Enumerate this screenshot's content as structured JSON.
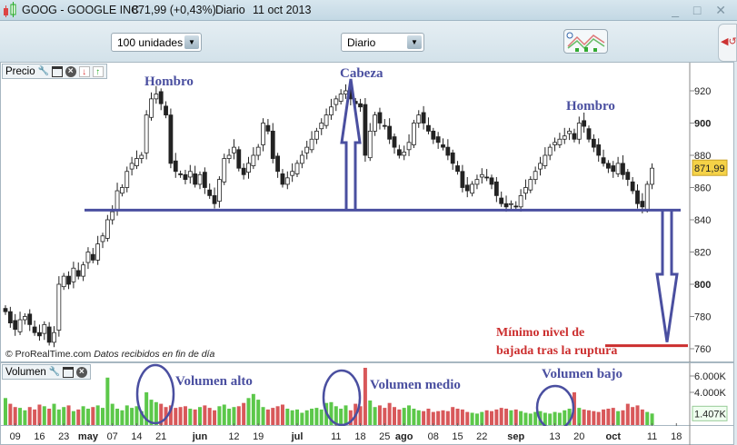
{
  "window": {
    "symbol": "GOOG - GOOGLE INC.",
    "quote": "871,99 (+0,43%)",
    "period": "Diario",
    "date": "11 oct 2013",
    "controls": "_ □ ✕"
  },
  "toolbar": {
    "units": "100 unidades",
    "timeframe": "Diario"
  },
  "price_panel": {
    "label": "Precio",
    "credit": "© ProRealTime.com",
    "credit_note": "Datos recibidos en fin de día",
    "last_price": "871,99"
  },
  "volume_panel": {
    "label": "Volumen",
    "last_volume": "1.407K"
  },
  "annotations": {
    "left_shoulder": "Hombro",
    "head": "Cabeza",
    "right_shoulder": "Hombro",
    "target_line1": "Mínimo nivel de",
    "target_line2": "bajada tras la ruptura",
    "vol_high": "Volumen alto",
    "vol_mid": "Volumen medio",
    "vol_low": "Volumen bajo",
    "neckline_price": 846,
    "target_price": 763
  },
  "colors": {
    "up_candle": "#ffffff",
    "down_candle": "#222222",
    "vol_up": "#5cc84a",
    "vol_down": "#d8585a",
    "annotation": "#4a4fa0",
    "target": "#cc2f2f"
  },
  "chart_data": {
    "type": "candlestick",
    "ylim": [
      755,
      935
    ],
    "yticks": [
      920,
      900,
      880,
      860,
      840,
      820,
      800,
      780,
      760
    ],
    "vol_ticks": [
      "6.000K",
      "4.000K"
    ],
    "vol_tick_values": [
      6000,
      4000
    ],
    "xticks": [
      {
        "label": "09",
        "i": 2
      },
      {
        "label": "16",
        "i": 7
      },
      {
        "label": "23",
        "i": 12
      },
      {
        "label": "may",
        "i": 17,
        "bold": true
      },
      {
        "label": "07",
        "i": 22
      },
      {
        "label": "14",
        "i": 27
      },
      {
        "label": "21",
        "i": 32
      },
      {
        "label": "jun",
        "i": 40,
        "bold": true
      },
      {
        "label": "12",
        "i": 47
      },
      {
        "label": "19",
        "i": 52
      },
      {
        "label": "jul",
        "i": 60,
        "bold": true
      },
      {
        "label": "11",
        "i": 68
      },
      {
        "label": "18",
        "i": 73
      },
      {
        "label": "25",
        "i": 78
      },
      {
        "label": "ago",
        "i": 82,
        "bold": true
      },
      {
        "label": "08",
        "i": 88
      },
      {
        "label": "15",
        "i": 93
      },
      {
        "label": "22",
        "i": 98
      },
      {
        "label": "sep",
        "i": 105,
        "bold": true
      },
      {
        "label": "13",
        "i": 113
      },
      {
        "label": "20",
        "i": 118
      },
      {
        "label": "oct",
        "i": 125,
        "bold": true
      },
      {
        "label": "11",
        "i": 133
      },
      {
        "label": "18",
        "i": 138
      }
    ],
    "close": [
      783,
      776,
      772,
      778,
      780,
      775,
      770,
      768,
      775,
      764,
      770,
      800,
      805,
      800,
      810,
      805,
      812,
      820,
      815,
      825,
      830,
      840,
      845,
      858,
      860,
      870,
      875,
      878,
      880,
      905,
      915,
      918,
      912,
      905,
      875,
      870,
      868,
      865,
      870,
      862,
      868,
      860,
      855,
      850,
      865,
      878,
      880,
      885,
      872,
      868,
      875,
      880,
      885,
      900,
      895,
      878,
      870,
      862,
      866,
      870,
      875,
      880,
      885,
      890,
      895,
      900,
      905,
      910,
      915,
      918,
      920,
      915,
      912,
      910,
      880,
      895,
      905,
      900,
      898,
      890,
      885,
      880,
      882,
      888,
      900,
      905,
      900,
      895,
      890,
      888,
      885,
      880,
      875,
      870,
      860,
      858,
      862,
      865,
      868,
      866,
      862,
      855,
      850,
      848,
      850,
      848,
      855,
      860,
      865,
      870,
      875,
      880,
      885,
      888,
      890,
      892,
      895,
      890,
      900,
      898,
      890,
      885,
      880,
      875,
      872,
      870,
      875,
      868,
      865,
      858,
      850,
      848,
      862,
      872
    ],
    "volume": [
      3300,
      2600,
      2200,
      2100,
      1800,
      2200,
      1900,
      2500,
      2300,
      2000,
      2600,
      1900,
      2200,
      2400,
      1700,
      1900,
      2300,
      2000,
      2200,
      2400,
      2100,
      5800,
      2600,
      2000,
      1800,
      2400,
      2100,
      2300,
      1700,
      4000,
      3100,
      2800,
      2600,
      2200,
      2400,
      2100,
      2200,
      2300,
      2000,
      1900,
      2200,
      2400,
      2100,
      1800,
      2300,
      2500,
      2000,
      2200,
      2300,
      2700,
      3300,
      3800,
      3100,
      2200,
      1900,
      2100,
      2300,
      2500,
      2000,
      1800,
      1900,
      1500,
      1800,
      2000,
      2100,
      1900,
      2700,
      2800,
      2300,
      2000,
      2400,
      1800,
      2600,
      2300,
      7000,
      3000,
      2200,
      2400,
      2100,
      2700,
      2200,
      1900,
      2100,
      2400,
      2000,
      1800,
      1700,
      2000,
      1600,
      1700,
      1800,
      1700,
      2200,
      2000,
      1900,
      1600,
      1500,
      1400,
      1600,
      1800,
      1700,
      1900,
      2100,
      2000,
      1800,
      1900,
      1700,
      1500,
      1400,
      1600,
      1700,
      1500,
      1400,
      1600,
      1500,
      1800,
      2000,
      4000,
      2100,
      1900,
      1800,
      1700,
      1600,
      1900,
      2000,
      2100,
      1700,
      1800,
      2600,
      2200,
      2400,
      1900,
      1600,
      1407
    ]
  }
}
